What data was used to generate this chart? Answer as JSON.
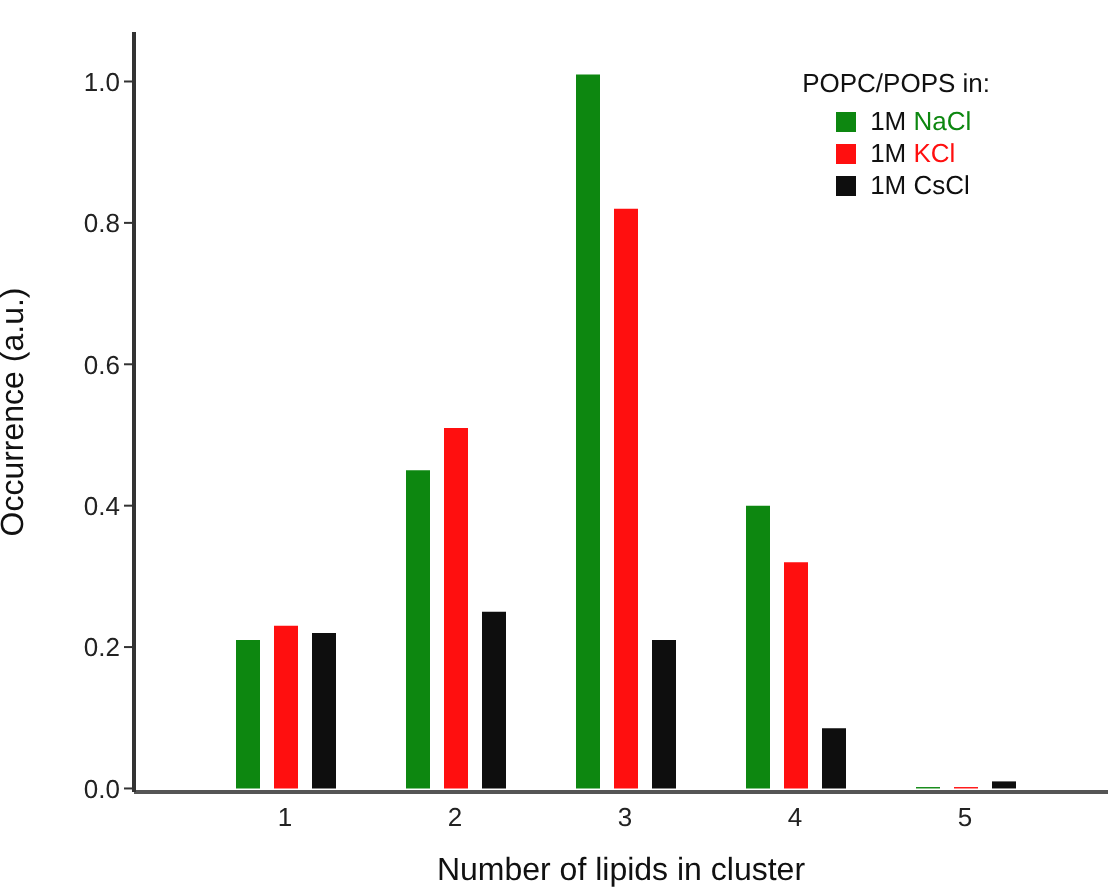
{
  "chart_data": {
    "type": "bar",
    "xlabel": "Number of lipids in cluster",
    "ylabel": "Occurrence (a.u.)",
    "legend_title": "POPC/POPS in:",
    "legend": "top right",
    "categories": [
      "1",
      "2",
      "3",
      "4",
      "5"
    ],
    "series": [
      {
        "name": "1M NaCl",
        "color": "#0d8710",
        "values": [
          0.21,
          0.45,
          1.01,
          0.4,
          0.002
        ]
      },
      {
        "name": "1M KCl",
        "color": "#ff0f0f",
        "values": [
          0.23,
          0.51,
          0.82,
          0.32,
          0.002
        ]
      },
      {
        "name": "1M CsCl",
        "color": "#0e0e0e",
        "values": [
          0.22,
          0.25,
          0.21,
          0.085,
          0.01
        ]
      }
    ],
    "ylim": [
      -0.005,
      1.07
    ],
    "yticks": [
      {
        "value": 0,
        "label": "0.0"
      },
      {
        "value": 0.2,
        "label": "0.2"
      },
      {
        "value": 0.4,
        "label": "0.4"
      },
      {
        "value": 0.6,
        "label": "0.6"
      },
      {
        "value": 0.8,
        "label": "0.8"
      },
      {
        "value": 1,
        "label": "1.0"
      }
    ],
    "grid": false
  }
}
